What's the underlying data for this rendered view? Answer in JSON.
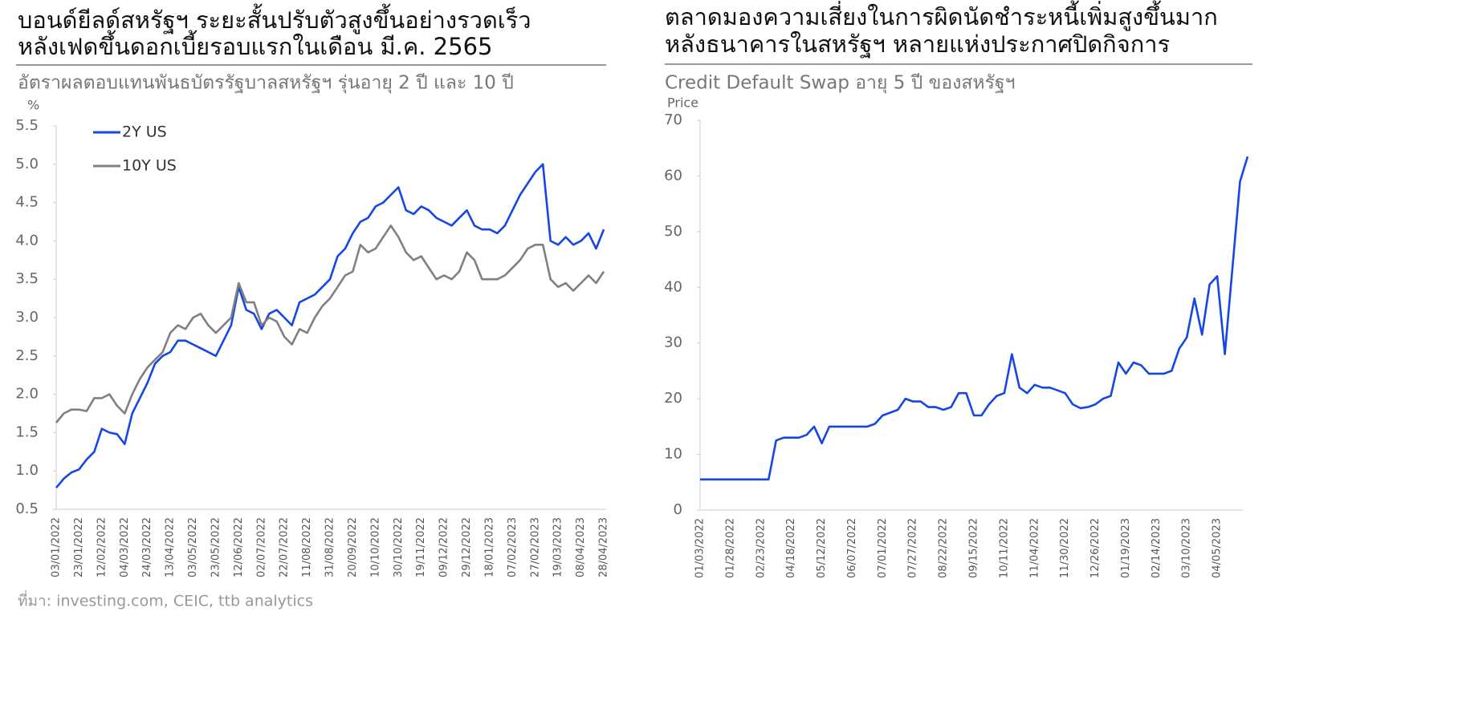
{
  "chart_data": [
    {
      "type": "line",
      "title": [
        "บอนด์ยีลด์สหรัฐฯ ระยะสั้นปรับตัวสูงขึ้นอย่างรวดเร็ว",
        "หลังเฟดขึ้นดอกเบี้ยรอบแรกในเดือน มี.ค. 2565"
      ],
      "subtitle": "อัตราผลตอบแทนพันธบัตรรัฐบาลสหรัฐฯ รุ่นอายุ 2 ปี และ 10 ปี",
      "y_label": "%",
      "categories": [
        "03/01/2022",
        null,
        null,
        "23/01/2022",
        null,
        null,
        "12/02/2022",
        null,
        null,
        "04/03/2022",
        null,
        null,
        "24/03/2022",
        null,
        null,
        "13/04/2022",
        null,
        null,
        "03/05/2022",
        null,
        null,
        "23/05/2022",
        null,
        null,
        "12/06/2022",
        null,
        null,
        "02/07/2022",
        null,
        null,
        "22/07/2022",
        null,
        null,
        "11/08/2022",
        null,
        null,
        "31/08/2022",
        null,
        null,
        "20/09/2022",
        null,
        null,
        "10/10/2022",
        null,
        null,
        "30/10/2022",
        null,
        null,
        "19/11/2022",
        null,
        null,
        "09/12/2022",
        null,
        null,
        "29/12/2022",
        null,
        null,
        "18/01/2023",
        null,
        null,
        "07/02/2023",
        null,
        null,
        "27/02/2023",
        null,
        null,
        "19/03/2023",
        null,
        null,
        "08/04/2023",
        null,
        null,
        "28/04/2023"
      ],
      "series": [
        {
          "name": "2Y US",
          "color": "#1447e6",
          "values": [
            0.78,
            0.9,
            0.98,
            1.02,
            1.15,
            1.25,
            1.55,
            1.5,
            1.48,
            1.35,
            1.75,
            1.95,
            2.15,
            2.4,
            2.5,
            2.55,
            2.7,
            2.7,
            2.65,
            2.6,
            2.55,
            2.5,
            2.7,
            2.9,
            3.4,
            3.1,
            3.05,
            2.85,
            3.05,
            3.1,
            3.0,
            2.9,
            3.2,
            3.25,
            3.3,
            3.4,
            3.5,
            3.8,
            3.9,
            4.1,
            4.25,
            4.3,
            4.45,
            4.5,
            4.6,
            4.7,
            4.4,
            4.35,
            4.45,
            4.4,
            4.3,
            4.25,
            4.2,
            4.3,
            4.4,
            4.2,
            4.15,
            4.15,
            4.1,
            4.2,
            4.4,
            4.6,
            4.75,
            4.9,
            5.0,
            4.0,
            3.95,
            4.05,
            3.95,
            4.0,
            4.1,
            3.9,
            4.15
          ]
        },
        {
          "name": "10Y US",
          "color": "#808080",
          "values": [
            1.63,
            1.75,
            1.8,
            1.8,
            1.78,
            1.95,
            1.95,
            2.0,
            1.85,
            1.75,
            2.0,
            2.2,
            2.35,
            2.45,
            2.55,
            2.8,
            2.9,
            2.85,
            3.0,
            3.05,
            2.9,
            2.8,
            2.9,
            3.0,
            3.45,
            3.2,
            3.2,
            2.9,
            3.0,
            2.95,
            2.75,
            2.65,
            2.85,
            2.8,
            3.0,
            3.15,
            3.25,
            3.4,
            3.55,
            3.6,
            3.95,
            3.85,
            3.9,
            4.05,
            4.2,
            4.05,
            3.85,
            3.75,
            3.8,
            3.65,
            3.5,
            3.55,
            3.5,
            3.6,
            3.85,
            3.75,
            3.5,
            3.5,
            3.5,
            3.55,
            3.65,
            3.75,
            3.9,
            3.95,
            3.95,
            3.5,
            3.4,
            3.45,
            3.35,
            3.45,
            3.55,
            3.45,
            3.6
          ]
        }
      ],
      "ylim": [
        0.5,
        5.5
      ],
      "yticks": [
        0.5,
        {
          "value": 1,
          "label": "1.0"
        },
        1.5,
        {
          "value": 2,
          "label": "2.0"
        },
        2.5,
        {
          "value": 3,
          "label": "3.0"
        },
        3.5,
        {
          "value": 4,
          "label": "4.0"
        },
        4.5,
        {
          "value": 5,
          "label": "5.0"
        },
        5.5
      ],
      "legend": "upper left"
    },
    {
      "type": "line",
      "title": [
        "ตลาดมองความเสี่ยงในการผิดนัดชำระหนี้เพิ่มสูงขึ้นมาก",
        "หลังธนาคารในสหรัฐฯ หลายแห่งประกาศปิดกิจการ"
      ],
      "subtitle": "Credit Default Swap อายุ 5 ปี ของสหรัฐฯ",
      "y_label": "Price",
      "categories": [
        "01/03/2022",
        null,
        null,
        null,
        "01/28/2022",
        null,
        null,
        null,
        "02/23/2022",
        null,
        null,
        null,
        "04/18/2022",
        null,
        null,
        null,
        "05/12/2022",
        null,
        null,
        null,
        "06/07/2022",
        null,
        null,
        null,
        "07/01/2022",
        null,
        null,
        null,
        "07/27/2022",
        null,
        null,
        null,
        "08/22/2022",
        null,
        null,
        null,
        "09/15/2022",
        null,
        null,
        null,
        "10/11/2022",
        null,
        null,
        null,
        "11/04/2022",
        null,
        null,
        null,
        "11/30/2022",
        null,
        null,
        null,
        "12/26/2022",
        null,
        null,
        null,
        "01/19/2023",
        null,
        null,
        null,
        "02/14/2023",
        null,
        null,
        null,
        "03/10/2023",
        null,
        null,
        null,
        "04/05/2023",
        null,
        null,
        null,
        null
      ],
      "series": [
        {
          "color": "#1447e6",
          "values": [
            5.5,
            5.5,
            5.5,
            5.5,
            5.5,
            5.5,
            5.5,
            5.5,
            5.5,
            5.5,
            12.5,
            13,
            13,
            13,
            13.5,
            15,
            12,
            15,
            15,
            15,
            15,
            15,
            15,
            15.5,
            17,
            17.5,
            18,
            20,
            19.5,
            19.5,
            18.5,
            18.5,
            18,
            18.5,
            21,
            21,
            17,
            17,
            19,
            20.5,
            21,
            28,
            22,
            21,
            22.5,
            22,
            22,
            21.5,
            21,
            19,
            18.3,
            18.5,
            19,
            20,
            20.5,
            26.5,
            24.5,
            26.5,
            26,
            24.5,
            24.5,
            24.5,
            25,
            29,
            31,
            38,
            31.5,
            40.5,
            42,
            28,
            43.5,
            59,
            63.5
          ]
        }
      ],
      "ylim": [
        0,
        70
      ],
      "yticks": [
        0,
        10,
        20,
        30,
        40,
        50,
        60,
        70
      ]
    }
  ],
  "source": "ที่มา: investing.com, CEIC, ttb analytics"
}
